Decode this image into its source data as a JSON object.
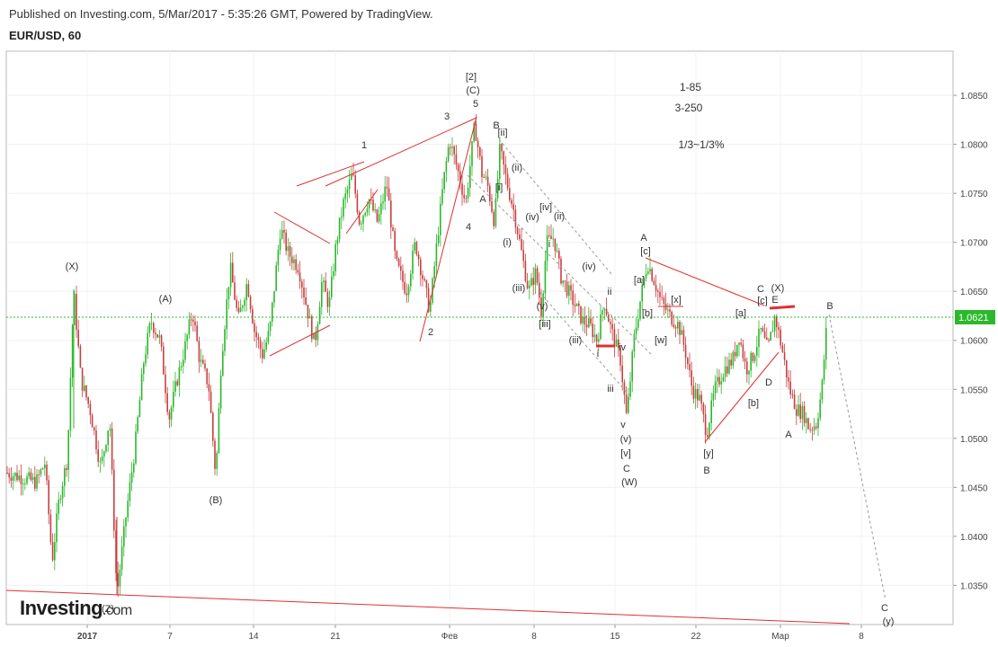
{
  "header": {
    "published": "Published on Investing.com, 5/Mar/2017 - 5:35:26 GMT, Powered by TradingView.",
    "symbol": "EUR/USD, 60"
  },
  "logo": {
    "main": "Investing",
    "suffix": ".com"
  },
  "chart_data": {
    "type": "candlestick",
    "ylim": [
      1.031,
      1.0895
    ],
    "y_ticks": [
      "1.0850",
      "1.0800",
      "1.0750",
      "1.0700",
      "1.0650",
      "1.0600",
      "1.0550",
      "1.0500",
      "1.0450",
      "1.0400",
      "1.0350"
    ],
    "x_ticks": [
      "2017",
      "7",
      "14",
      "21",
      "Фев",
      "8",
      "15",
      "22",
      "Мар",
      "8"
    ],
    "current_price": "1.0621",
    "colors": {
      "up": "#2bb82b",
      "down": "#c84040",
      "line": "#e03030",
      "fwd": "#999999",
      "price": "#2bb82b"
    },
    "notes": [
      "1-85",
      "3-250",
      "1/3~1/3%"
    ],
    "labels": [
      "(X)",
      "(A)",
      "(B)",
      "(Z)",
      "1",
      "2",
      "3",
      "4",
      "5",
      "[2]",
      "(C)",
      "A",
      "B",
      "[ii]",
      "(ii)",
      "[i]",
      "(iv)",
      "(ii)",
      "[iv]",
      "(i)",
      "i",
      "(iii)",
      "(v)",
      "[iii]",
      "(iii)",
      "(iv)",
      "ii",
      "iv",
      "i",
      "iii",
      "v",
      "(v)",
      "[v]",
      "C",
      "(W)",
      "A",
      "[c]",
      "[a]",
      "[b]",
      "[x]",
      "[w]",
      "B",
      "[y]",
      "[a]",
      "[c]",
      "C",
      "(X)",
      "E",
      "D",
      "[b]",
      "A",
      "B",
      "C",
      "(y)"
    ]
  }
}
